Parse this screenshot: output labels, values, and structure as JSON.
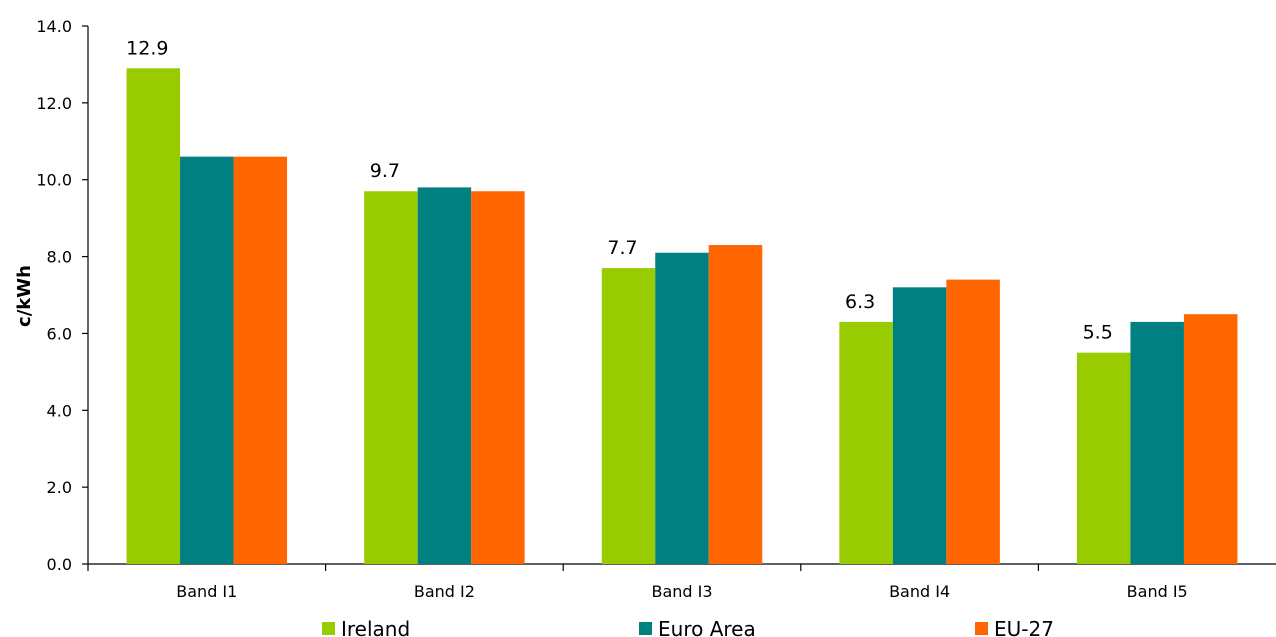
{
  "chart_data": {
    "type": "bar",
    "title": "",
    "xlabel": "",
    "ylabel": "c/kWh",
    "ylim": [
      0,
      14
    ],
    "yticks": [
      "0.0",
      "2.0",
      "4.0",
      "6.0",
      "8.0",
      "10.0",
      "12.0",
      "14.0"
    ],
    "ytick_values": [
      0,
      2,
      4,
      6,
      8,
      10,
      12,
      14
    ],
    "categories": [
      "Band I1",
      "Band I2",
      "Band I3",
      "Band I4",
      "Band I5"
    ],
    "series": [
      {
        "name": "Ireland",
        "color": "#99cc00",
        "values": [
          12.9,
          9.7,
          7.7,
          6.3,
          5.5
        ],
        "labels": [
          "12.9",
          "9.7",
          "7.7",
          "6.3",
          "5.5"
        ]
      },
      {
        "name": "Euro Area",
        "color": "#008080",
        "values": [
          10.6,
          9.8,
          8.1,
          7.2,
          6.3
        ]
      },
      {
        "name": "EU-27",
        "color": "#ff6600",
        "values": [
          10.6,
          9.7,
          8.3,
          7.4,
          6.5
        ]
      }
    ],
    "grid": false,
    "legend": "bottom"
  }
}
